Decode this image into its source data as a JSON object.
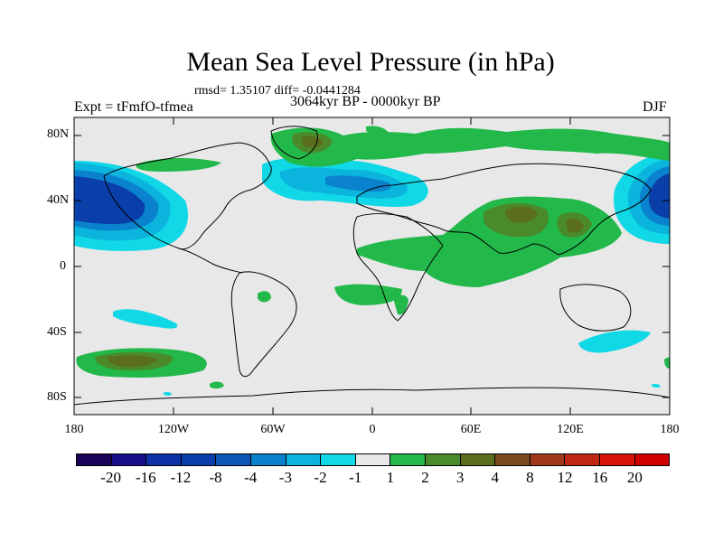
{
  "title": "Mean Sea Level Pressure (in hPa)",
  "stats": "rmsd= 1.35107 diff= -0.0441284",
  "experiment": "Expt = tFmfO-tfmea",
  "period": "3064kyr BP - 0000kyr BP",
  "season": "DJF",
  "y_ticks": [
    "80N",
    "40N",
    "0",
    "40S",
    "80S"
  ],
  "x_ticks": [
    "180",
    "120W",
    "60W",
    "0",
    "60E",
    "120E",
    "180"
  ],
  "colorbar": {
    "labels": [
      "-20",
      "-16",
      "-12",
      "-8",
      "-4",
      "-3",
      "-2",
      "-1",
      "1",
      "2",
      "3",
      "4",
      "8",
      "12",
      "16",
      "20"
    ],
    "colors": [
      "#1a0057",
      "#180f8c",
      "#0d32a6",
      "#0a3ea8",
      "#0a57b8",
      "#0a82cd",
      "#0ab4dc",
      "#10d8e6",
      "#e8e8e8",
      "#22b84a",
      "#4a8a2a",
      "#5a6e1e",
      "#7a4a1e",
      "#a0381a",
      "#c02614",
      "#d81208",
      "#d00000"
    ]
  },
  "chart_data": {
    "type": "heatmap",
    "title": "Mean Sea Level Pressure (in hPa)",
    "variable": "Mean Sea Level Pressure difference (hPa)",
    "lon_range": [
      -180,
      180
    ],
    "lat_range": [
      -90,
      90
    ],
    "season": "DJF",
    "levels": [
      -20,
      -16,
      -12,
      -8,
      -4,
      -3,
      -2,
      -1,
      1,
      2,
      3,
      4,
      8,
      12,
      16,
      20
    ],
    "features": [
      {
        "region": "North Pacific (west of N. America)",
        "lon": -160,
        "lat": 40,
        "sign": "negative",
        "min_level": -8
      },
      {
        "region": "North Pacific (east of Asia)",
        "lon": 170,
        "lat": 40,
        "sign": "negative",
        "min_level": -8
      },
      {
        "region": "North Atlantic",
        "lon": -20,
        "lat": 48,
        "sign": "negative",
        "min_level": -3
      },
      {
        "region": "Greenland",
        "lon": -35,
        "lat": 75,
        "sign": "positive",
        "max_level": 4
      },
      {
        "region": "South Asia / Tibet",
        "lon": 90,
        "lat": 30,
        "sign": "positive",
        "max_level": 4
      },
      {
        "region": "East Asia",
        "lon": 115,
        "lat": 20,
        "sign": "positive",
        "max_level": 4
      },
      {
        "region": "Southern Ocean (south Pacific)",
        "lon": -140,
        "lat": -60,
        "sign": "positive",
        "max_level": 4
      },
      {
        "region": "South Pacific subtropics",
        "lon": -145,
        "lat": -30,
        "sign": "negative",
        "min_level": -2
      },
      {
        "region": "South of Australia",
        "lon": 140,
        "lat": -50,
        "sign": "negative",
        "min_level": -2
      },
      {
        "region": "Equatorial Africa / Indian Ocean",
        "lon": 40,
        "lat": 5,
        "sign": "positive",
        "max_level": 2
      }
    ]
  }
}
